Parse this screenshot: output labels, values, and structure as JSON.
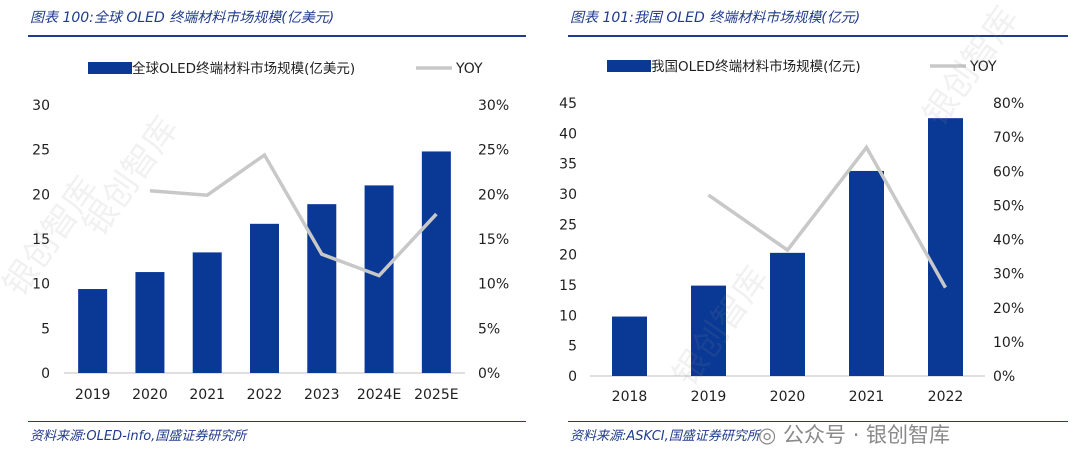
{
  "watermark": "银创智库",
  "brand_text": "公众号 · 银创智库",
  "colors": {
    "bar": "#0a3895",
    "line": "#c8c8c8",
    "accent": "#1f3b8c"
  },
  "chart_data": [
    {
      "type": "bar",
      "figure_title": "图表 100:全球 OLED 终端材料市场规模(亿美元)",
      "source": "资料来源:OLED-info,国盛证券研究所",
      "categories": [
        "2019",
        "2020",
        "2021",
        "2022",
        "2023",
        "2024E",
        "2025E"
      ],
      "series": [
        {
          "name": "全球OLED终端材料市场规模(亿美元)",
          "axis": "left",
          "kind": "bar",
          "values": [
            9.4,
            11.3,
            13.5,
            16.7,
            18.9,
            21.0,
            24.8
          ]
        },
        {
          "name": "YOY",
          "axis": "right",
          "kind": "line",
          "values": [
            null,
            20.4,
            19.9,
            24.4,
            13.3,
            10.9,
            17.8
          ]
        }
      ],
      "y_left": {
        "min": 0,
        "max": 30,
        "step": 5,
        "ticks": [
          "0",
          "5",
          "10",
          "15",
          "20",
          "25",
          "30"
        ]
      },
      "y_right": {
        "min": 0,
        "max": 30,
        "step": 5,
        "ticks": [
          "0%",
          "5%",
          "10%",
          "15%",
          "20%",
          "25%",
          "30%"
        ]
      },
      "legend_position": "top"
    },
    {
      "type": "bar",
      "figure_title": "图表 101:我国 OLED 终端材料市场规模(亿元)",
      "source": "资料来源:ASKCI,国盛证券研究所",
      "categories": [
        "2018",
        "2019",
        "2020",
        "2021",
        "2022"
      ],
      "series": [
        {
          "name": "我国OLED终端材料市场规模(亿元)",
          "axis": "left",
          "kind": "bar",
          "values": [
            9.8,
            14.9,
            20.3,
            33.8,
            42.5
          ]
        },
        {
          "name": "YOY",
          "axis": "right",
          "kind": "line",
          "values": [
            null,
            53.0,
            36.9,
            67.0,
            25.9
          ]
        }
      ],
      "y_left": {
        "min": 0,
        "max": 45,
        "step": 5,
        "ticks": [
          "0",
          "5",
          "10",
          "15",
          "20",
          "25",
          "30",
          "35",
          "40",
          "45"
        ]
      },
      "y_right": {
        "min": 0,
        "max": 80,
        "step": 10,
        "ticks": [
          "0%",
          "10%",
          "20%",
          "30%",
          "40%",
          "50%",
          "60%",
          "70%",
          "80%"
        ]
      },
      "legend_position": "top"
    }
  ]
}
